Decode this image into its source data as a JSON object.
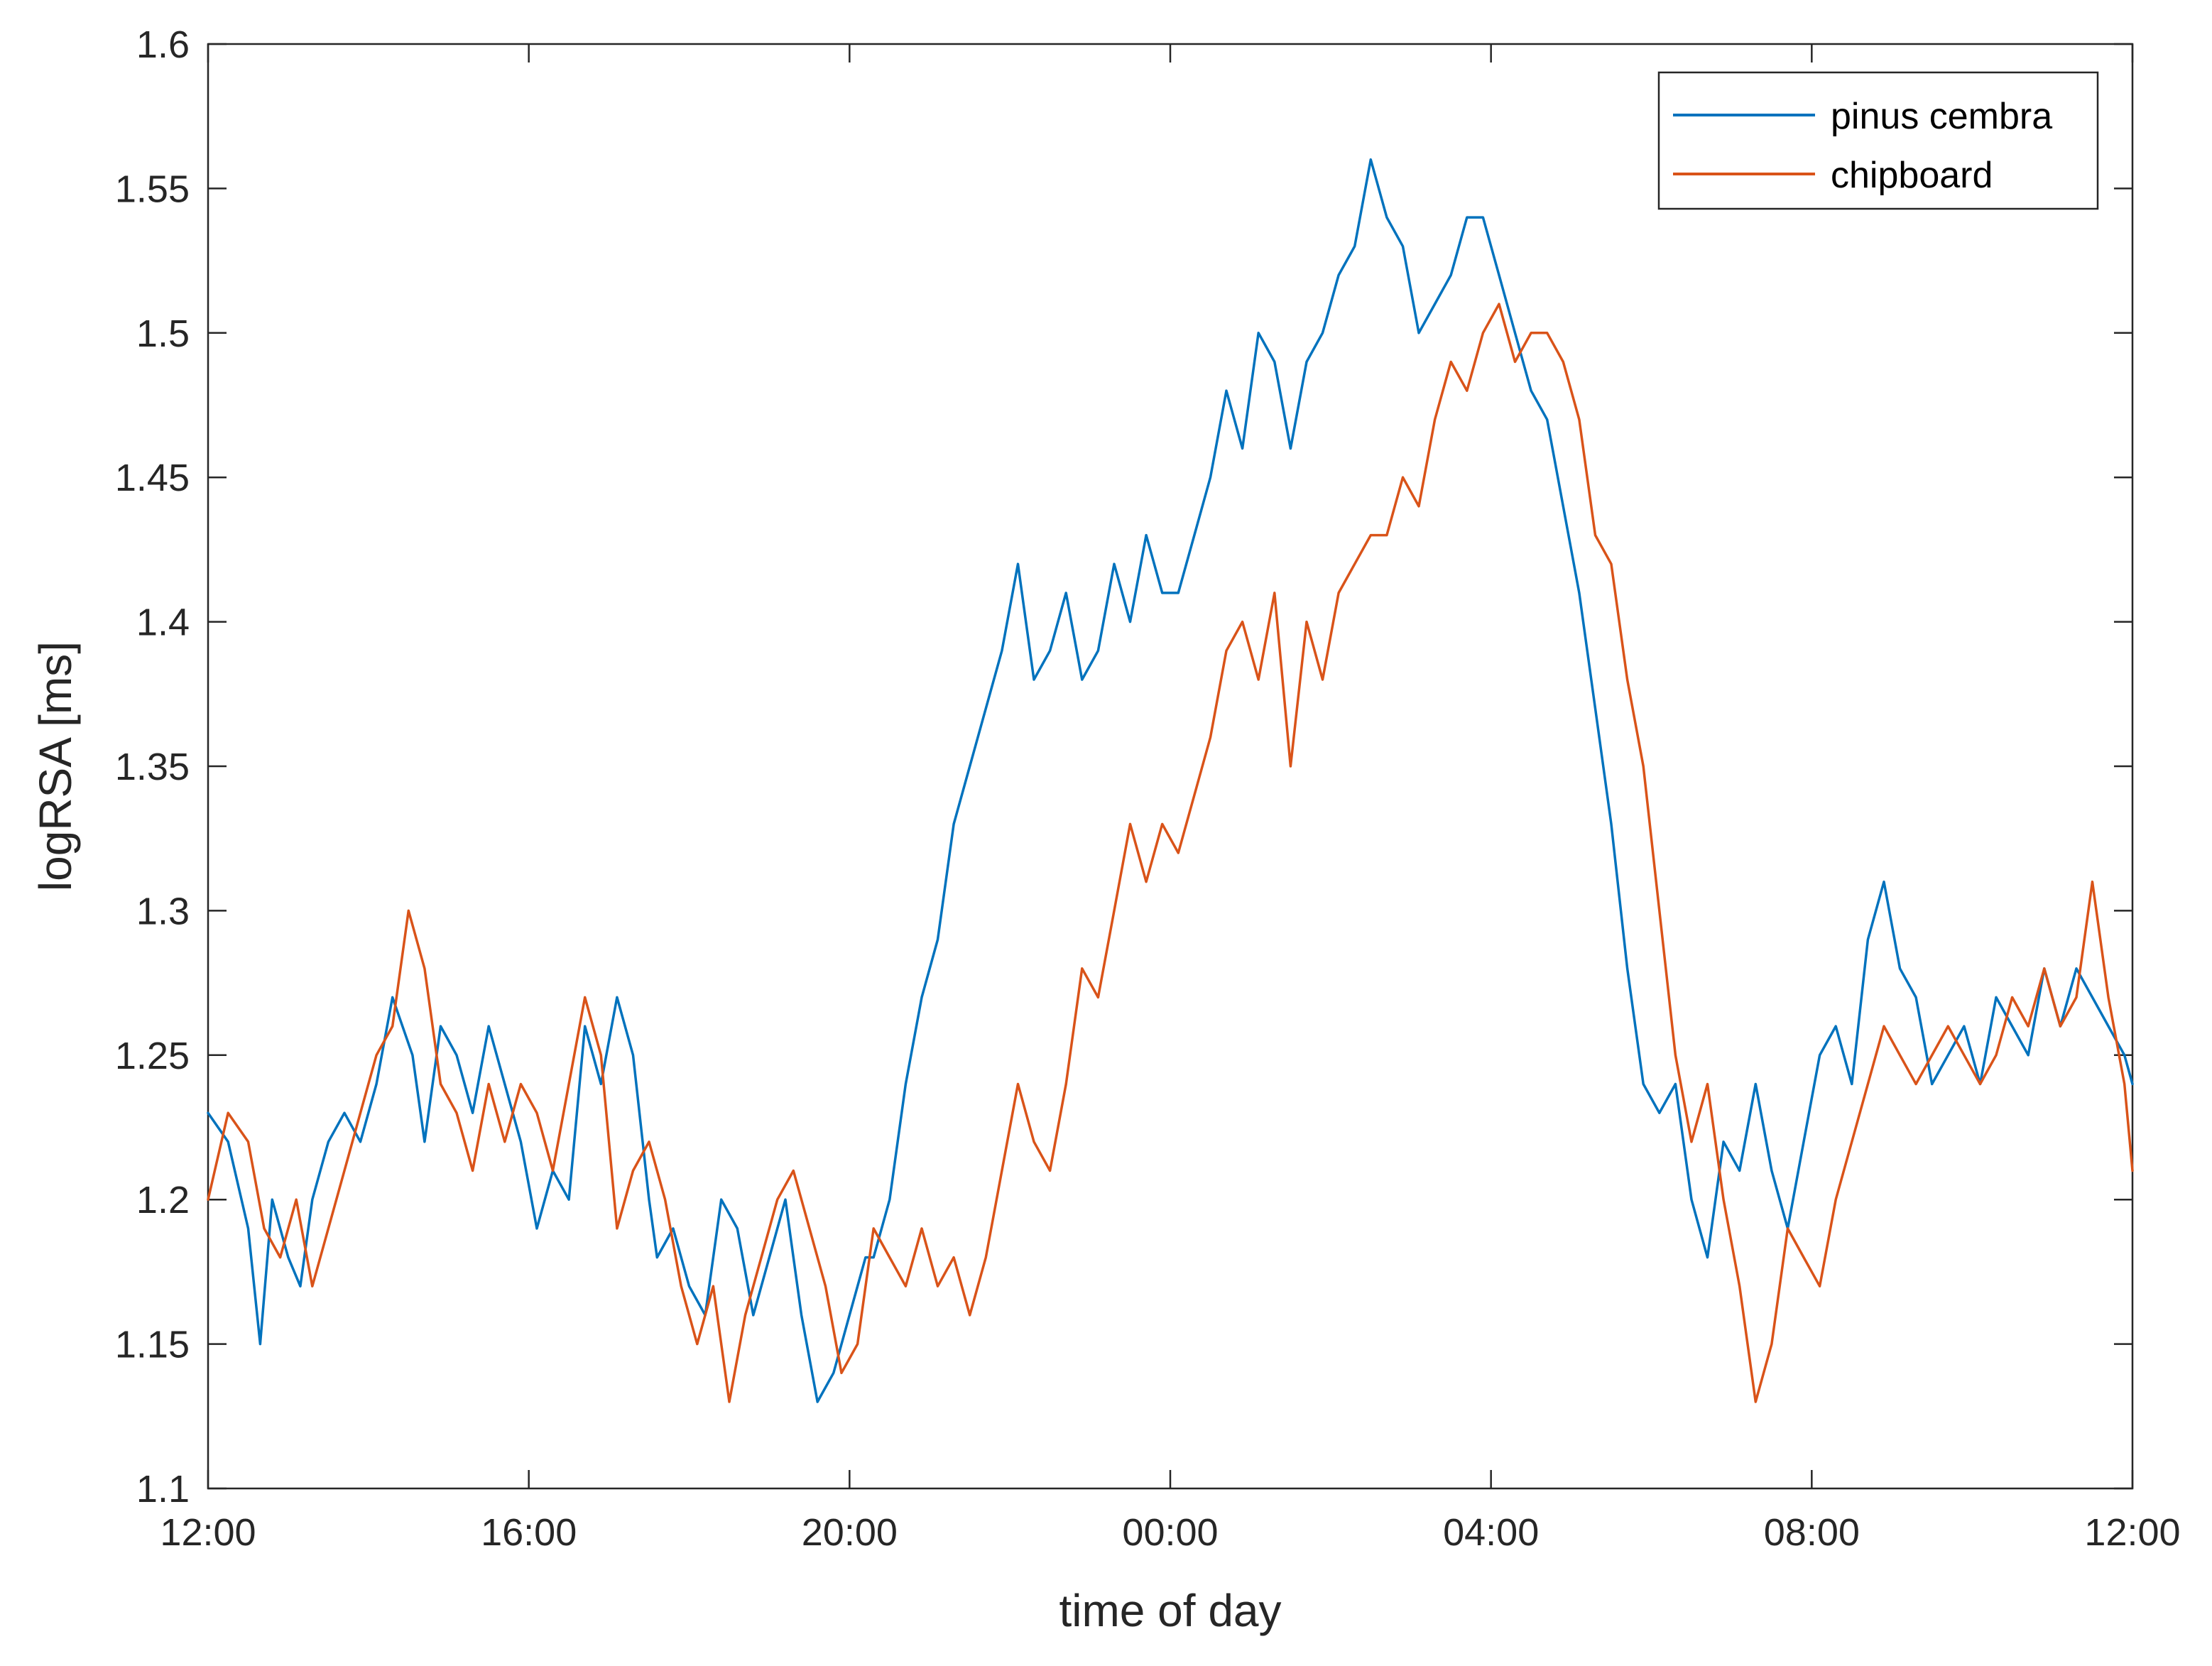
{
  "chart_data": {
    "type": "line",
    "xlabel": "time of day",
    "ylabel": "logRSA [ms]",
    "xlim": [
      0,
      24
    ],
    "ylim": [
      1.1,
      1.6
    ],
    "x_ticks": [
      {
        "value": 0,
        "label": "12:00"
      },
      {
        "value": 4,
        "label": "16:00"
      },
      {
        "value": 8,
        "label": "20:00"
      },
      {
        "value": 12,
        "label": "00:00"
      },
      {
        "value": 16,
        "label": "04:00"
      },
      {
        "value": 20,
        "label": "08:00"
      },
      {
        "value": 24,
        "label": "12:00"
      }
    ],
    "y_ticks": [
      {
        "value": 1.1,
        "label": "1.1"
      },
      {
        "value": 1.15,
        "label": "1.15"
      },
      {
        "value": 1.2,
        "label": "1.2"
      },
      {
        "value": 1.25,
        "label": "1.25"
      },
      {
        "value": 1.3,
        "label": "1.3"
      },
      {
        "value": 1.35,
        "label": "1.35"
      },
      {
        "value": 1.4,
        "label": "1.4"
      },
      {
        "value": 1.45,
        "label": "1.45"
      },
      {
        "value": 1.5,
        "label": "1.5"
      },
      {
        "value": 1.55,
        "label": "1.55"
      },
      {
        "value": 1.6,
        "label": "1.6"
      }
    ],
    "grid": false,
    "legend_position": "top-right",
    "series": [
      {
        "name": "pinus cembra",
        "color": "#0072BD",
        "x": [
          0.0,
          0.25,
          0.5,
          0.65,
          0.8,
          1.0,
          1.15,
          1.3,
          1.5,
          1.7,
          1.9,
          2.1,
          2.3,
          2.55,
          2.7,
          2.9,
          3.1,
          3.3,
          3.5,
          3.7,
          3.9,
          4.1,
          4.3,
          4.5,
          4.7,
          4.9,
          5.1,
          5.3,
          5.5,
          5.6,
          5.8,
          6.0,
          6.2,
          6.4,
          6.6,
          6.8,
          7.0,
          7.2,
          7.4,
          7.6,
          7.8,
          8.0,
          8.2,
          8.3,
          8.5,
          8.7,
          8.9,
          9.1,
          9.3,
          9.5,
          9.7,
          9.9,
          10.1,
          10.3,
          10.5,
          10.7,
          10.9,
          11.1,
          11.3,
          11.5,
          11.7,
          11.9,
          12.1,
          12.3,
          12.5,
          12.7,
          12.9,
          13.1,
          13.3,
          13.5,
          13.7,
          13.9,
          14.1,
          14.3,
          14.5,
          14.7,
          14.9,
          15.1,
          15.3,
          15.5,
          15.7,
          15.9,
          16.1,
          16.3,
          16.5,
          16.7,
          16.9,
          17.1,
          17.3,
          17.5,
          17.7,
          17.9,
          18.1,
          18.3,
          18.5,
          18.7,
          18.9,
          19.1,
          19.3,
          19.5,
          19.7,
          19.9,
          20.1,
          20.3,
          20.5,
          20.7,
          20.9,
          21.1,
          21.3,
          21.5,
          21.7,
          21.9,
          22.1,
          22.3,
          22.5,
          22.7,
          22.9,
          23.1,
          23.3,
          23.5,
          23.7,
          23.9,
          24.0
        ],
        "values": [
          1.23,
          1.22,
          1.19,
          1.15,
          1.2,
          1.18,
          1.17,
          1.2,
          1.22,
          1.23,
          1.22,
          1.24,
          1.27,
          1.25,
          1.22,
          1.26,
          1.25,
          1.23,
          1.26,
          1.24,
          1.22,
          1.19,
          1.21,
          1.2,
          1.26,
          1.24,
          1.27,
          1.25,
          1.2,
          1.18,
          1.19,
          1.17,
          1.16,
          1.2,
          1.19,
          1.16,
          1.18,
          1.2,
          1.16,
          1.13,
          1.14,
          1.16,
          1.18,
          1.18,
          1.2,
          1.24,
          1.27,
          1.29,
          1.33,
          1.35,
          1.37,
          1.39,
          1.42,
          1.38,
          1.39,
          1.41,
          1.38,
          1.39,
          1.42,
          1.4,
          1.43,
          1.41,
          1.41,
          1.43,
          1.45,
          1.48,
          1.46,
          1.5,
          1.49,
          1.46,
          1.49,
          1.5,
          1.52,
          1.53,
          1.56,
          1.54,
          1.53,
          1.5,
          1.51,
          1.52,
          1.54,
          1.54,
          1.52,
          1.5,
          1.48,
          1.47,
          1.44,
          1.41,
          1.37,
          1.33,
          1.28,
          1.24,
          1.23,
          1.24,
          1.2,
          1.18,
          1.22,
          1.21,
          1.24,
          1.21,
          1.19,
          1.22,
          1.25,
          1.26,
          1.24,
          1.29,
          1.31,
          1.28,
          1.27,
          1.24,
          1.25,
          1.26,
          1.24,
          1.27,
          1.26,
          1.25,
          1.28,
          1.26,
          1.28,
          1.27,
          1.26,
          1.25,
          1.24
        ]
      },
      {
        "name": "chipboard",
        "color": "#D95319",
        "x": [
          0.0,
          0.25,
          0.5,
          0.7,
          0.9,
          1.1,
          1.3,
          1.5,
          1.7,
          1.9,
          2.1,
          2.3,
          2.5,
          2.7,
          2.9,
          3.1,
          3.3,
          3.5,
          3.7,
          3.9,
          4.1,
          4.3,
          4.5,
          4.7,
          4.9,
          5.1,
          5.3,
          5.5,
          5.7,
          5.9,
          6.1,
          6.3,
          6.5,
          6.7,
          6.9,
          7.1,
          7.3,
          7.5,
          7.7,
          7.9,
          8.1,
          8.3,
          8.5,
          8.7,
          8.9,
          9.1,
          9.3,
          9.5,
          9.7,
          9.9,
          10.1,
          10.3,
          10.5,
          10.7,
          10.9,
          11.1,
          11.3,
          11.5,
          11.7,
          11.9,
          12.1,
          12.3,
          12.5,
          12.7,
          12.9,
          13.1,
          13.3,
          13.5,
          13.7,
          13.9,
          14.1,
          14.3,
          14.5,
          14.7,
          14.9,
          15.1,
          15.3,
          15.5,
          15.7,
          15.9,
          16.1,
          16.3,
          16.5,
          16.7,
          16.9,
          17.1,
          17.3,
          17.5,
          17.7,
          17.9,
          18.1,
          18.3,
          18.5,
          18.7,
          18.9,
          19.1,
          19.3,
          19.5,
          19.7,
          19.9,
          20.1,
          20.3,
          20.5,
          20.7,
          20.9,
          21.1,
          21.3,
          21.5,
          21.7,
          21.9,
          22.1,
          22.3,
          22.5,
          22.7,
          22.9,
          23.1,
          23.3,
          23.5,
          23.7,
          23.9,
          24.0
        ],
        "values": [
          1.2,
          1.23,
          1.22,
          1.19,
          1.18,
          1.2,
          1.17,
          1.19,
          1.21,
          1.23,
          1.25,
          1.26,
          1.3,
          1.28,
          1.24,
          1.23,
          1.21,
          1.24,
          1.22,
          1.24,
          1.23,
          1.21,
          1.24,
          1.27,
          1.25,
          1.19,
          1.21,
          1.22,
          1.2,
          1.17,
          1.15,
          1.17,
          1.13,
          1.16,
          1.18,
          1.2,
          1.21,
          1.19,
          1.17,
          1.14,
          1.15,
          1.19,
          1.18,
          1.17,
          1.19,
          1.17,
          1.18,
          1.16,
          1.18,
          1.21,
          1.24,
          1.22,
          1.21,
          1.24,
          1.28,
          1.27,
          1.3,
          1.33,
          1.31,
          1.33,
          1.32,
          1.34,
          1.36,
          1.39,
          1.4,
          1.38,
          1.41,
          1.35,
          1.4,
          1.38,
          1.41,
          1.42,
          1.43,
          1.43,
          1.45,
          1.44,
          1.47,
          1.49,
          1.48,
          1.5,
          1.51,
          1.49,
          1.5,
          1.5,
          1.49,
          1.47,
          1.43,
          1.42,
          1.38,
          1.35,
          1.3,
          1.25,
          1.22,
          1.24,
          1.2,
          1.17,
          1.13,
          1.15,
          1.19,
          1.18,
          1.17,
          1.2,
          1.22,
          1.24,
          1.26,
          1.25,
          1.24,
          1.25,
          1.26,
          1.25,
          1.24,
          1.25,
          1.27,
          1.26,
          1.28,
          1.26,
          1.27,
          1.31,
          1.27,
          1.24,
          1.21
        ]
      }
    ]
  }
}
